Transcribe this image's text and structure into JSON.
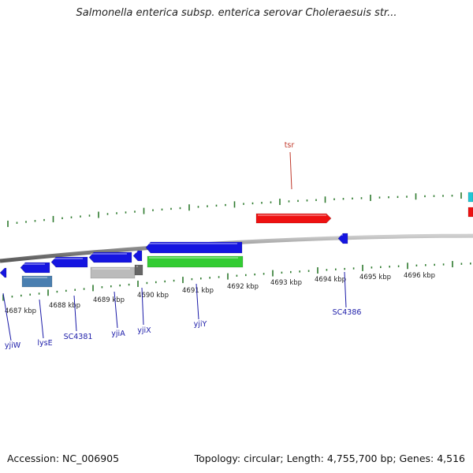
{
  "title": "Salmonella enterica subsp. enterica serovar Choleraesuis str...",
  "footer": {
    "accession": "Accession: NC_006905",
    "summary": "Topology: circular; Length: 4,755,700 bp; Genes: 4,516"
  },
  "colors": {
    "backbone": "#8a8a8a",
    "tick": "#2d7a2d",
    "label_blue": "#1a1aa8",
    "label_red": "#c0392b",
    "gene_blue": "#1515e0",
    "gene_red": "#ee1111",
    "gene_green": "#33cc33",
    "gene_grey": "#bbbbbb",
    "gene_steel": "#4a7fb0",
    "gene_cyan": "#22c8d6"
  },
  "scale_labels": [
    "4687 kbp",
    "4688 kbp",
    "4689 kbp",
    "4690 kbp",
    "4691 kbp",
    "4692 kbp",
    "4693 kbp",
    "4694 kbp",
    "4695 kbp",
    "4696 kbp"
  ],
  "gene_labels": {
    "top": [
      "tsr"
    ],
    "bottom": [
      "yjiW",
      "lysE",
      "SC4381",
      "yjiA",
      "yjiX",
      "yjiY",
      "SC4386"
    ]
  }
}
